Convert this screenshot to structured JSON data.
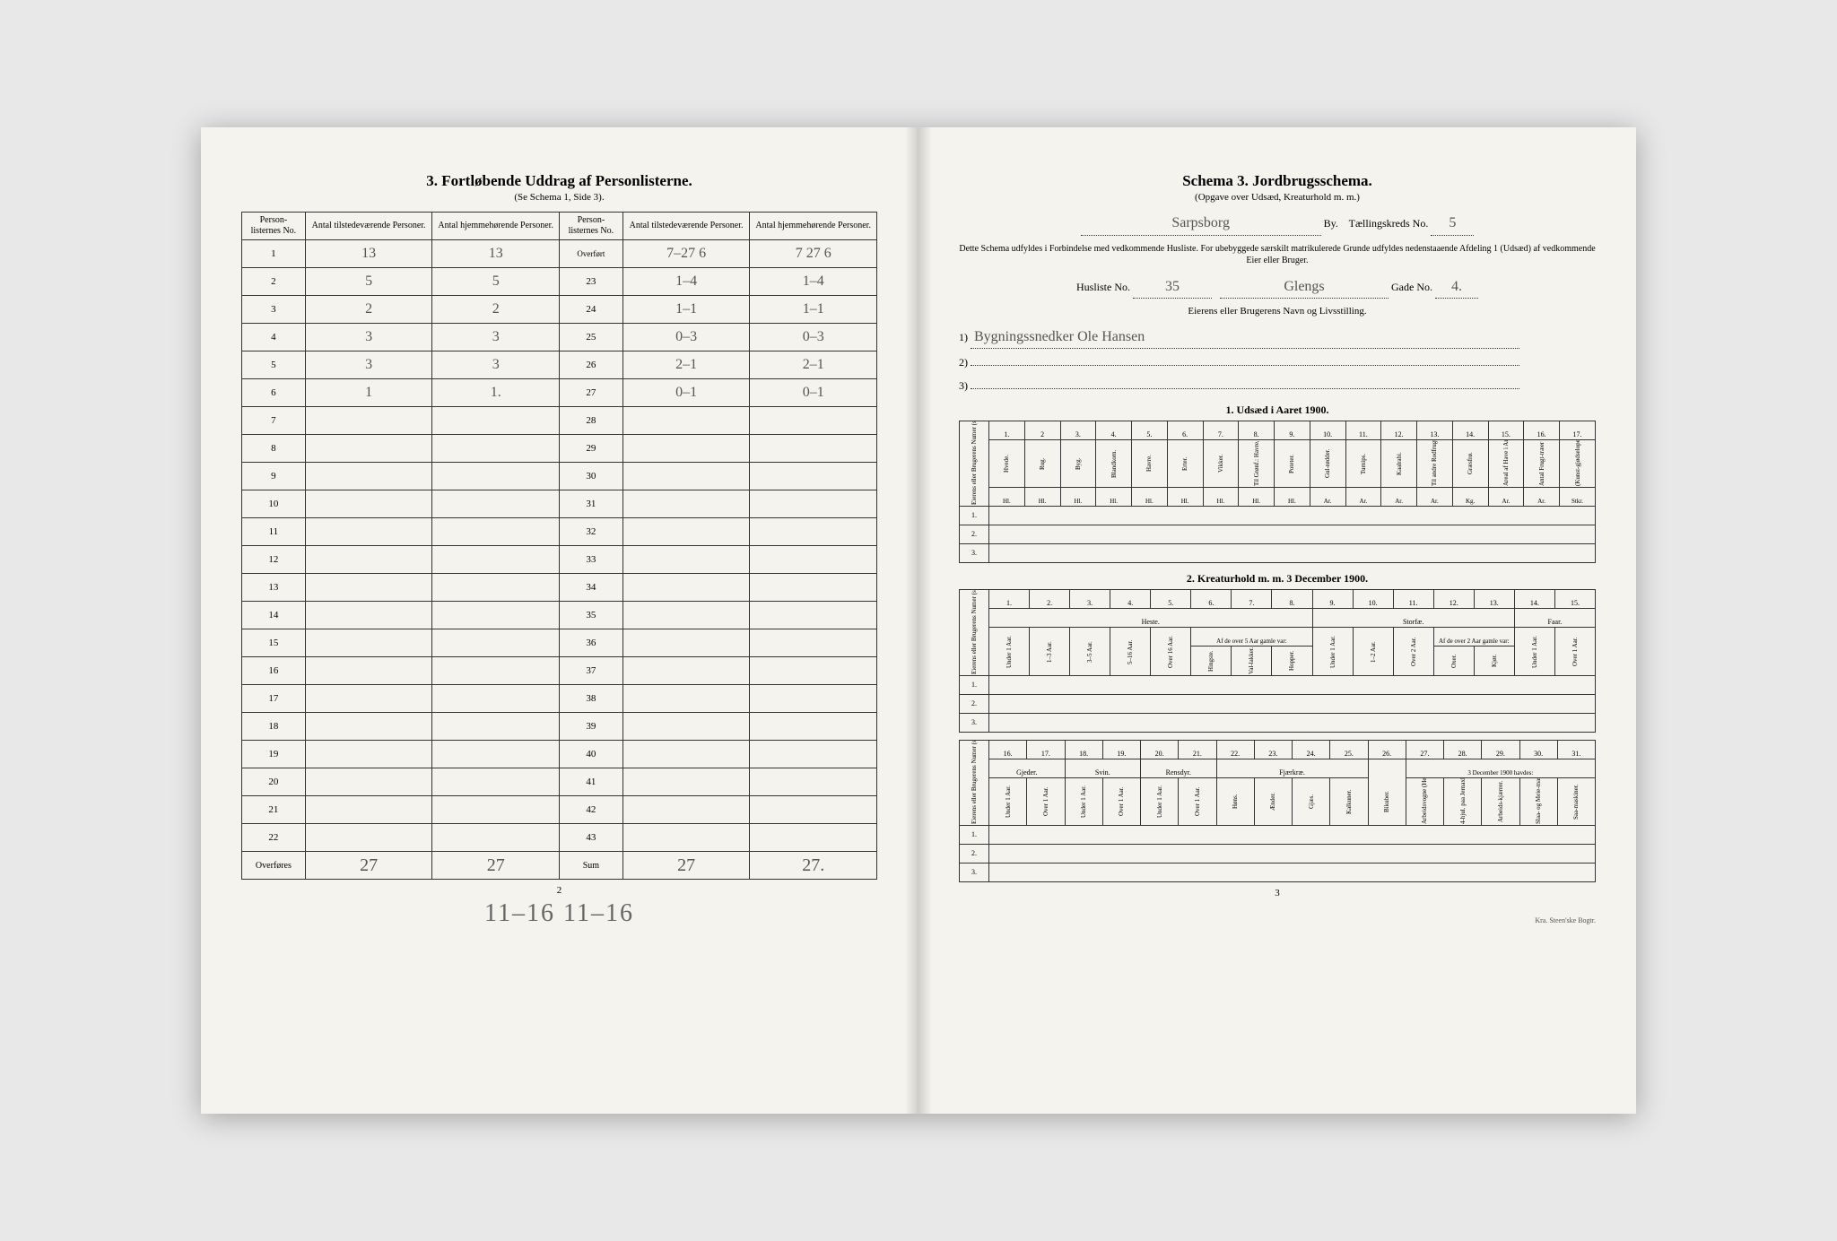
{
  "left": {
    "title": "3.  Fortløbende Uddrag af Personlisterne.",
    "subtitle": "(Se Schema 1, Side 3).",
    "headers": {
      "no": "Person-\nlisternes\nNo.",
      "present": "Antal\ntilstedeværende\nPersoner.",
      "home": "Antal\nhjemmehørende\nPersoner.",
      "overfort": "Overført"
    },
    "rowsA": [
      {
        "n": "1",
        "a": "13",
        "b": "13"
      },
      {
        "n": "2",
        "a": "5",
        "b": "5"
      },
      {
        "n": "3",
        "a": "2",
        "b": "2"
      },
      {
        "n": "4",
        "a": "3",
        "b": "3"
      },
      {
        "n": "5",
        "a": "3",
        "b": "3"
      },
      {
        "n": "6",
        "a": "1",
        "b": "1."
      },
      {
        "n": "7",
        "a": "",
        "b": ""
      },
      {
        "n": "8",
        "a": "",
        "b": ""
      },
      {
        "n": "9",
        "a": "",
        "b": ""
      },
      {
        "n": "10",
        "a": "",
        "b": ""
      },
      {
        "n": "11",
        "a": "",
        "b": ""
      },
      {
        "n": "12",
        "a": "",
        "b": ""
      },
      {
        "n": "13",
        "a": "",
        "b": ""
      },
      {
        "n": "14",
        "a": "",
        "b": ""
      },
      {
        "n": "15",
        "a": "",
        "b": ""
      },
      {
        "n": "16",
        "a": "",
        "b": ""
      },
      {
        "n": "17",
        "a": "",
        "b": ""
      },
      {
        "n": "18",
        "a": "",
        "b": ""
      },
      {
        "n": "19",
        "a": "",
        "b": ""
      },
      {
        "n": "20",
        "a": "",
        "b": ""
      },
      {
        "n": "21",
        "a": "",
        "b": ""
      },
      {
        "n": "22",
        "a": "",
        "b": ""
      }
    ],
    "rowsB": [
      {
        "n": "Overført",
        "a": "7–27 6",
        "b": "7 27 6",
        "isOverfort": true
      },
      {
        "n": "23",
        "a": "1–4",
        "b": "1–4"
      },
      {
        "n": "24",
        "a": "1–1",
        "b": "1–1"
      },
      {
        "n": "25",
        "a": "0–3",
        "b": "0–3"
      },
      {
        "n": "26",
        "a": "2–1",
        "b": "2–1"
      },
      {
        "n": "27",
        "a": "0–1",
        "b": "0–1"
      },
      {
        "n": "28",
        "a": "",
        "b": ""
      },
      {
        "n": "29",
        "a": "",
        "b": ""
      },
      {
        "n": "30",
        "a": "",
        "b": ""
      },
      {
        "n": "31",
        "a": "",
        "b": ""
      },
      {
        "n": "32",
        "a": "",
        "b": ""
      },
      {
        "n": "33",
        "a": "",
        "b": ""
      },
      {
        "n": "34",
        "a": "",
        "b": ""
      },
      {
        "n": "35",
        "a": "",
        "b": ""
      },
      {
        "n": "36",
        "a": "",
        "b": ""
      },
      {
        "n": "37",
        "a": "",
        "b": ""
      },
      {
        "n": "38",
        "a": "",
        "b": ""
      },
      {
        "n": "39",
        "a": "",
        "b": ""
      },
      {
        "n": "40",
        "a": "",
        "b": ""
      },
      {
        "n": "41",
        "a": "",
        "b": ""
      },
      {
        "n": "42",
        "a": "",
        "b": ""
      },
      {
        "n": "43",
        "a": "",
        "b": ""
      }
    ],
    "footerA": {
      "label": "Overføres",
      "a": "27",
      "b": "27"
    },
    "footerB": {
      "label": "Sum",
      "a": "27",
      "b": "27."
    },
    "pageNum": "2",
    "belowSum": "11–16   11–16"
  },
  "right": {
    "title": "Schema 3.   Jordbrugsschema.",
    "subtitle": "(Opgave over Udsæd, Kreaturhold m. m.)",
    "byLabel": "By.",
    "byValue": "Sarpsborg",
    "kredsLabel": "Tællingskreds No.",
    "kredsValue": "5",
    "preface": "Dette Schema udfyldes i Forbindelse med vedkommende Husliste.  For ubebyggede særskilt matrikulerede Grunde udfyldes nedenstaaende Afdeling 1 (Udsæd) af vedkommende Eier eller Bruger.",
    "huslisteLabel": "Husliste No.",
    "huslisteNo": "35",
    "gadeName": "Glengs",
    "gadeLabel": "Gade No.",
    "gadeNo": "4.",
    "ownerHeading": "Eierens eller Brugerens Navn og Livsstilling.",
    "owner1": "Bygningssnedker Ole Hansen",
    "owner2": "",
    "owner3": "",
    "section1": "1.  Udsæd i Aaret 1900.",
    "section2": "2.  Kreaturhold m. m. 3 December 1900.",
    "rowlabel": "Eierens eller\nBrugerens Numer\n(se ovenfor).",
    "udsaed_cols": [
      "Hvede.",
      "Rug.",
      "Byg.",
      "Blandkorn.",
      "Havre.",
      "Erter.",
      "Vikker.",
      "Til Grønf.: Havre, Vikker o.l. Blan.",
      "Poteter.",
      "Gul-rødder.",
      "Turnips.",
      "Kaalrabi.",
      "Til andre Rodfrugter benyttet Areal Ar = 1/10 Maal.",
      "Græsfrø.",
      "Areal af Have i Ar.",
      "Antal Frugt-træer i Have.",
      "(Kunst-gjødselope.)"
    ],
    "udsaed_nums": [
      "1.",
      "2",
      "3.",
      "4.",
      "5.",
      "6.",
      "7.",
      "8.",
      "9.",
      "10.",
      "11.",
      "12.",
      "13.",
      "14.",
      "15.",
      "16.",
      "17."
    ],
    "udsaed_units": [
      "Hl.",
      "Hl.",
      "Hl.",
      "Hl.",
      "Hl.",
      "Hl.",
      "Hl.",
      "Hl.",
      "Hl.",
      "Ar.",
      "Ar.",
      "Ar.",
      "Ar.",
      "Kg.",
      "Ar.",
      "Ar.",
      "Stkr."
    ],
    "kreatur_nums": [
      "1.",
      "2.",
      "3.",
      "4.",
      "5.",
      "6.",
      "7.",
      "8.",
      "9.",
      "10.",
      "11.",
      "12.",
      "13.",
      "14.",
      "15."
    ],
    "kreatur_groups": {
      "heste": "Heste.",
      "storfae": "Storfæ.",
      "faar": "Faar."
    },
    "kreatur_cols": [
      "Under 1 Aar.",
      "1–3 Aar.",
      "3–5 Aar.",
      "5–16 Aar.",
      "Over 16 Aar.",
      "Hingste.",
      "Val-lakker.",
      "Hopper.",
      "Under 1 Aar.",
      "1–2 Aar.",
      "Over 2 Aar.",
      "Oxer.",
      "Kjør.",
      "Under 1 Aar.",
      "Over 1 Aar."
    ],
    "kreatur_sub": {
      "af5": "Af de over 5 Aar gamle var:",
      "af2": "Af de over 2 Aar gamle var:"
    },
    "kreatur2_nums": [
      "16.",
      "17.",
      "18.",
      "19.",
      "20.",
      "21.",
      "22.",
      "23.",
      "24.",
      "25.",
      "26.",
      "27.",
      "28.",
      "29.",
      "30.",
      "31."
    ],
    "kreatur2_groups": {
      "gjeder": "Gjeder.",
      "svin": "Svin.",
      "rensdyr": "Rensdyr.",
      "fjaerkrae": "Fjærkræ.",
      "dec": "3 December 1900 havdes:"
    },
    "kreatur2_cols": [
      "Under 1 Aar.",
      "Over 1 Aar.",
      "Under 1 Aar.",
      "Over 1 Aar.",
      "Under 1 Aar.",
      "Over 1 Aar.",
      "Høns.",
      "Ænder.",
      "Gjæs.",
      "Kalkuner.",
      "Bikuber.",
      "Arbeidsvogne (Herunder ikke medregnet)",
      "4-hjul. paa Jernaxl.",
      "Arbeids-kjærrer.",
      "Slaa- og Meie-maskiner.",
      "Saa-maskiner."
    ],
    "pageNum": "3",
    "printer": "Kra.  Steen'ske Bogtr."
  }
}
